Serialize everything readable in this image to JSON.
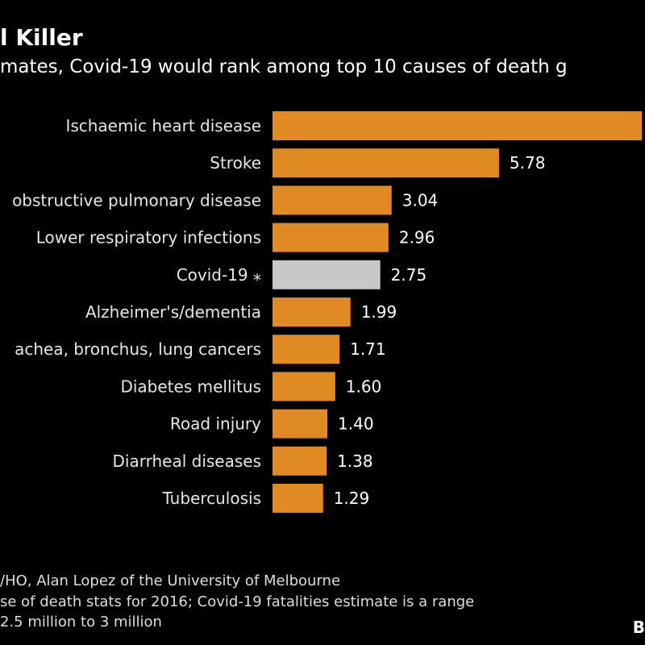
{
  "header": {
    "title": "l Killer",
    "subtitle": "mates, Covid-19 would rank among top 10 causes of death g"
  },
  "footer": {
    "source": "/HO, Alan Lopez of the University of Melbourne",
    "note_line1": "se of death stats for 2016; Covid-19 fatalities estimate is a range",
    "note_line2": "2.5 million to 3 million",
    "logo": "B"
  },
  "colors": {
    "bar": "#e08a24",
    "highlight": "#c8c8c8",
    "background": "#000000"
  },
  "chart_data": {
    "type": "bar",
    "orientation": "horizontal",
    "categories": [
      "Ischaemic heart disease",
      "Stroke",
      "obstructive pulmonary disease",
      "Lower respiratory infections",
      "Covid-19 ⁎",
      "Alzheimer's/dementia",
      "achea, bronchus, lung cancers",
      "Diabetes mellitus",
      "Road injury",
      "Diarrheal diseases",
      "Tuberculosis"
    ],
    "values": [
      9.43,
      5.78,
      3.04,
      2.96,
      2.75,
      1.99,
      1.71,
      1.6,
      1.4,
      1.38,
      1.29
    ],
    "value_labels": [
      "",
      "5.78",
      "3.04",
      "2.96",
      "2.75",
      "1.99",
      "1.71",
      "1.60",
      "1.40",
      "1.38",
      "1.29"
    ],
    "highlight_index": 4,
    "grid": false
  }
}
